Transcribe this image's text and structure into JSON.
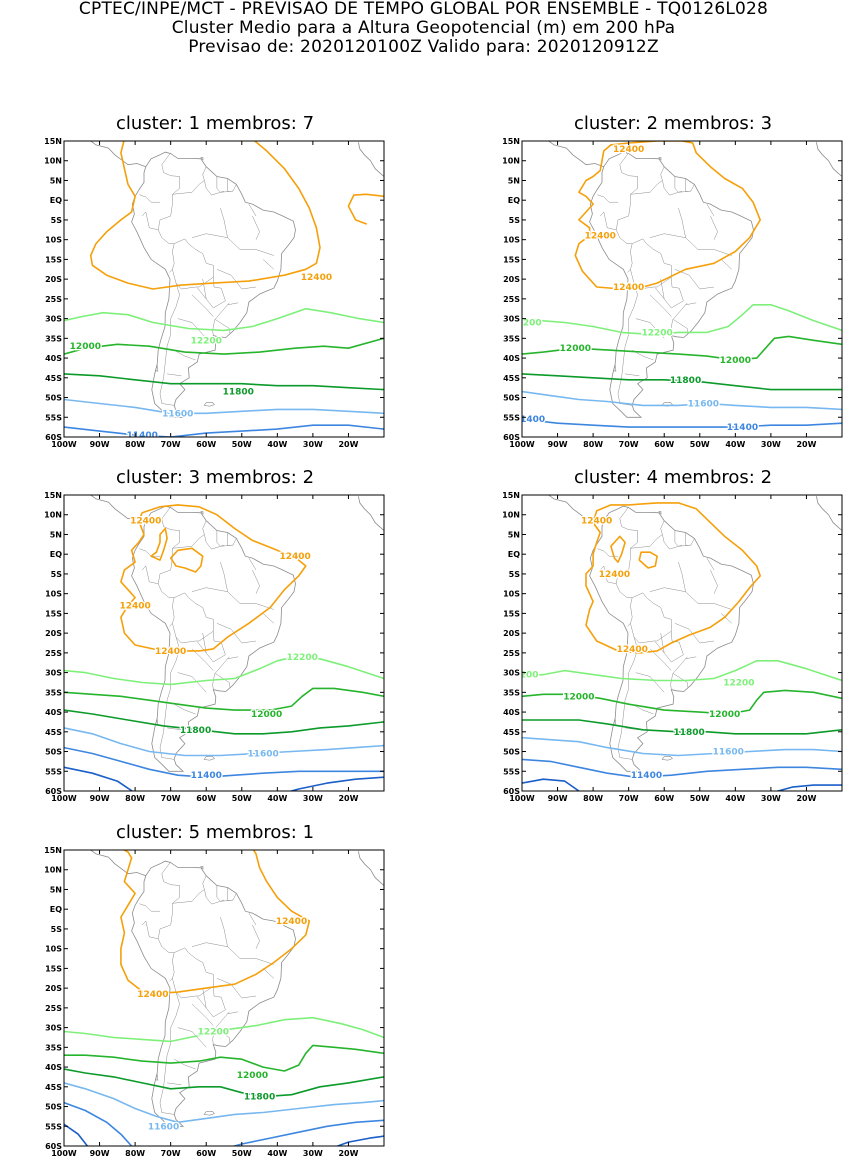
{
  "header": {
    "line1": "CPTEC/INPE/MCT - PREVISAO DE TEMPO GLOBAL POR ENSEMBLE - TQ0126L028",
    "line2": "Cluster Medio para a Altura Geopotencial (m) em 200 hPa",
    "line3": "Previsao de: 2020120100Z    Valido para: 2020120912Z"
  },
  "axes": {
    "lat_labels": [
      "15N",
      "10N",
      "5N",
      "EQ",
      "5S",
      "10S",
      "15S",
      "20S",
      "25S",
      "30S",
      "35S",
      "40S",
      "45S",
      "50S",
      "55S",
      "60S"
    ],
    "lon_labels": [
      "100W",
      "90W",
      "80W",
      "70W",
      "60W",
      "50W",
      "40W",
      "30W",
      "20W"
    ]
  },
  "colors": {
    "c12400": "#f5a00a",
    "c12200": "#7ef07a",
    "c12000": "#26b42c",
    "c11800": "#0c9a2a",
    "c11600": "#78b8f0",
    "c11400": "#3d86e0",
    "c11200": "#1a5ec8",
    "coast": "#8c8c8c"
  },
  "panels": [
    {
      "title": "cluster: 1   membros: 7",
      "labels": [
        {
          "t": "12400",
          "x": -29,
          "y": -19.5,
          "c": "c12400"
        },
        {
          "t": "12200",
          "x": -60,
          "y": -35.5,
          "c": "c12200"
        },
        {
          "t": "12000",
          "x": -94,
          "y": -37,
          "c": "c12000"
        },
        {
          "t": "11800",
          "x": -51,
          "y": -48.5,
          "c": "c11800"
        },
        {
          "t": "11600",
          "x": -68,
          "y": -54,
          "c": "c11600"
        },
        {
          "t": "11400",
          "x": -78,
          "y": -59.5,
          "c": "c11400"
        }
      ]
    },
    {
      "title": "cluster: 2   membros: 3",
      "labels": [
        {
          "t": "12400",
          "x": -70,
          "y": 13,
          "c": "c12400"
        },
        {
          "t": "12400",
          "x": -78,
          "y": -9,
          "c": "c12400"
        },
        {
          "t": "12400",
          "x": -70,
          "y": -22,
          "c": "c12400"
        },
        {
          "t": "1200",
          "x": -98,
          "y": -31,
          "c": "c12200"
        },
        {
          "t": "12200",
          "x": -62,
          "y": -33.5,
          "c": "c12200"
        },
        {
          "t": "12000",
          "x": -85,
          "y": -37.5,
          "c": "c12000"
        },
        {
          "t": "12000",
          "x": -40,
          "y": -40.5,
          "c": "c12000"
        },
        {
          "t": "11800",
          "x": -54,
          "y": -45.5,
          "c": "c11800"
        },
        {
          "t": "11600",
          "x": -49,
          "y": -51.5,
          "c": "c11600"
        },
        {
          "t": "1400",
          "x": -97,
          "y": -55.5,
          "c": "c11400"
        },
        {
          "t": "11400",
          "x": -38,
          "y": -57.5,
          "c": "c11400"
        }
      ]
    },
    {
      "title": "cluster: 3   membros: 2",
      "labels": [
        {
          "t": "12400",
          "x": -77,
          "y": 8.5,
          "c": "c12400"
        },
        {
          "t": "12400",
          "x": -35,
          "y": -0.5,
          "c": "c12400"
        },
        {
          "t": "12400",
          "x": -80,
          "y": -13,
          "c": "c12400"
        },
        {
          "t": "12400",
          "x": -70,
          "y": -24.5,
          "c": "c12400"
        },
        {
          "t": "12200",
          "x": -33,
          "y": -26,
          "c": "c12200"
        },
        {
          "t": "12000",
          "x": -43,
          "y": -40.5,
          "c": "c12000"
        },
        {
          "t": "11800",
          "x": -63,
          "y": -44.5,
          "c": "c11800"
        },
        {
          "t": "11600",
          "x": -44,
          "y": -50.5,
          "c": "c11600"
        },
        {
          "t": "11400",
          "x": -60,
          "y": -56,
          "c": "c11400"
        }
      ]
    },
    {
      "title": "cluster: 4   membros: 2",
      "labels": [
        {
          "t": "12400",
          "x": -79,
          "y": 8.5,
          "c": "c12400"
        },
        {
          "t": "12400",
          "x": -74,
          "y": -5,
          "c": "c12400"
        },
        {
          "t": "12400",
          "x": -69,
          "y": -24,
          "c": "c12400"
        },
        {
          "t": "200",
          "x": -98,
          "y": -30.5,
          "c": "c12200"
        },
        {
          "t": "12200",
          "x": -39,
          "y": -32.5,
          "c": "c12200"
        },
        {
          "t": "12000",
          "x": -84,
          "y": -36,
          "c": "c12000"
        },
        {
          "t": "12000",
          "x": -43,
          "y": -40.5,
          "c": "c12000"
        },
        {
          "t": "11800",
          "x": -53,
          "y": -45,
          "c": "c11800"
        },
        {
          "t": "11600",
          "x": -42,
          "y": -50,
          "c": "c11600"
        },
        {
          "t": "11400",
          "x": -65,
          "y": -56,
          "c": "c11400"
        }
      ]
    },
    {
      "title": "cluster: 5   membros: 1",
      "labels": [
        {
          "t": "12400",
          "x": -36,
          "y": -3,
          "c": "c12400"
        },
        {
          "t": "12400",
          "x": -75,
          "y": -21.5,
          "c": "c12400"
        },
        {
          "t": "12200",
          "x": -58,
          "y": -31,
          "c": "c12200"
        },
        {
          "t": "12000",
          "x": -47,
          "y": -42,
          "c": "c12000"
        },
        {
          "t": "11800",
          "x": -45,
          "y": -47.5,
          "c": "c11800"
        },
        {
          "t": "11600",
          "x": -72,
          "y": -55,
          "c": "c11600"
        }
      ]
    }
  ]
}
